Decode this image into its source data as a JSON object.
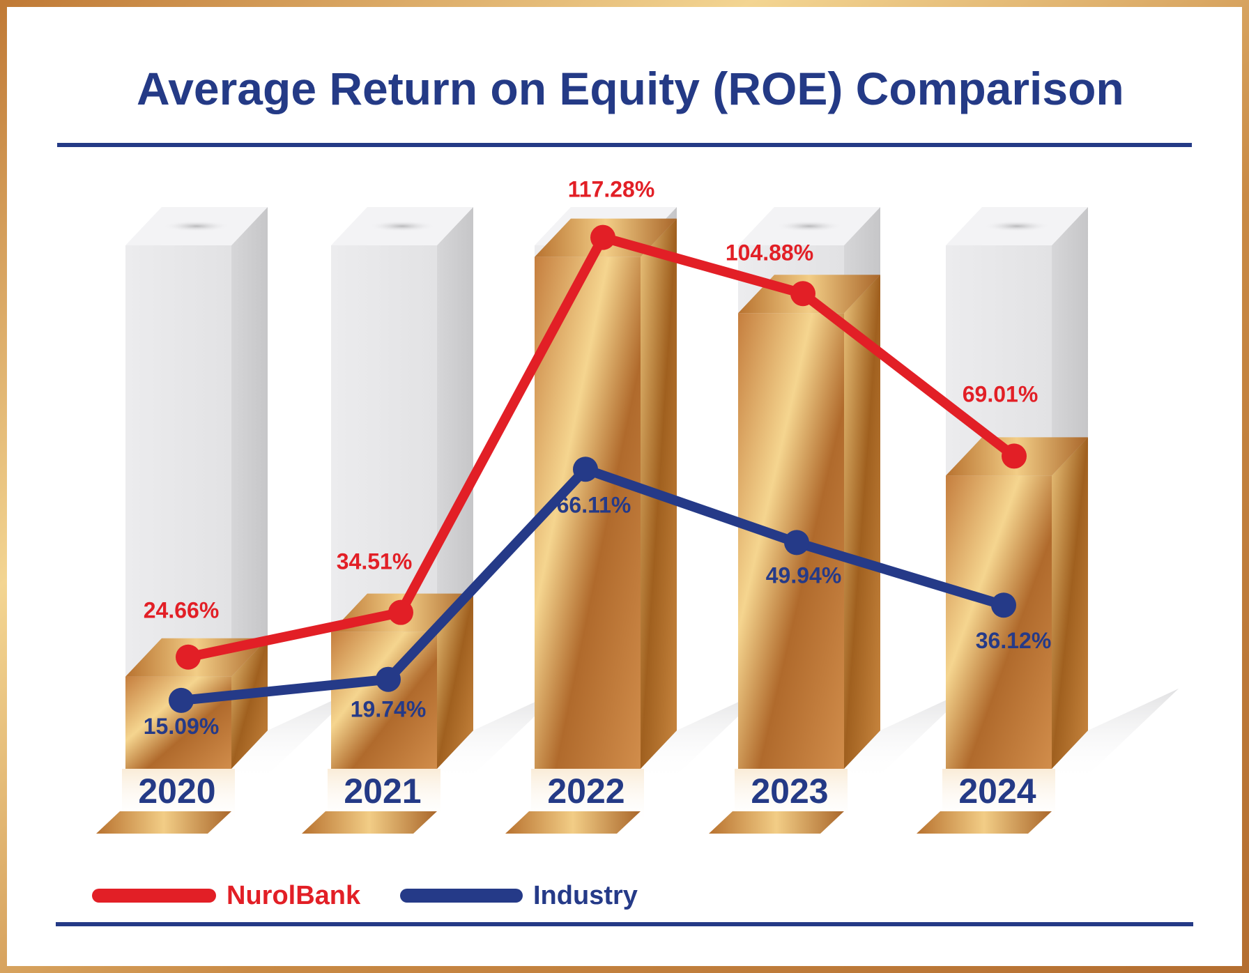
{
  "chart_data": {
    "type": "bar",
    "title": "Average Return on Equity (ROE) Comparison",
    "xlabel": "",
    "ylabel": "",
    "ylim": [
      0,
      130
    ],
    "categories": [
      "2020",
      "2021",
      "2022",
      "2023",
      "2024"
    ],
    "series": [
      {
        "name": "NurolBank",
        "values": [
          24.66,
          34.51,
          117.28,
          104.88,
          69.01
        ],
        "labels": [
          "24.66%",
          "34.51%",
          "117.28%",
          "104.88%",
          "69.01%"
        ],
        "color": "#e21f26",
        "render": "bar+line"
      },
      {
        "name": "Industry",
        "values": [
          15.09,
          19.74,
          66.11,
          49.94,
          36.12
        ],
        "labels": [
          "15.09%",
          "19.74%",
          "66.11%",
          "49.94%",
          "36.12%"
        ],
        "color": "#253a88",
        "render": "line"
      }
    ],
    "grid": false,
    "legend": "bottom-left"
  },
  "colors": {
    "title": "#243a86",
    "rule": "#243a86",
    "frame": "#c98a45",
    "gold_light": "#f6d48e",
    "gold_mid": "#d49a5a",
    "gold_dark": "#9c5a22",
    "bar_bg": "#e8e8ea"
  }
}
